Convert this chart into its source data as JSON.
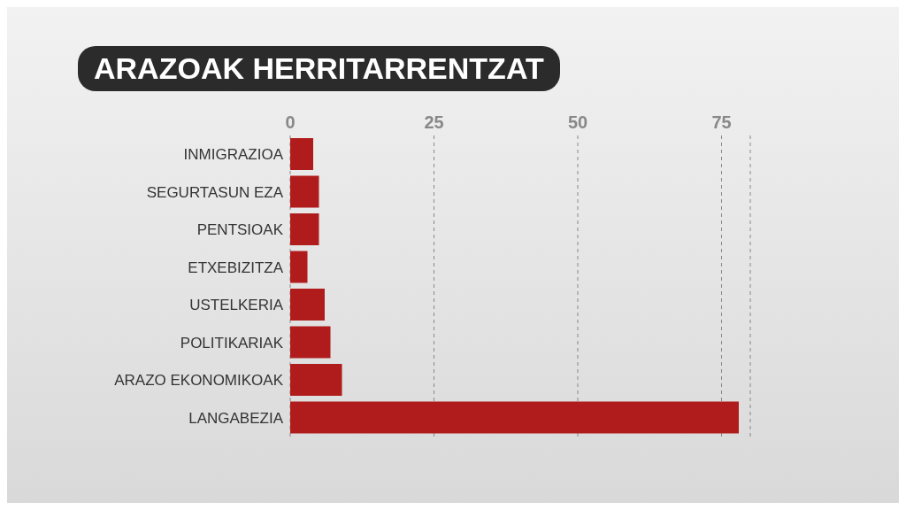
{
  "chart_data": {
    "type": "bar",
    "title": "ARAZOAK HERRITARRENTZAT",
    "orientation": "horizontal",
    "categories": [
      "INMIGRAZIOA",
      "SEGURTASUN EZA",
      "PENTSIOAK",
      "ETXEBIZITZA",
      "USTELKERIA",
      "POLITIKARIAK",
      "ARAZO EKONOMIKOAK",
      "LANGABEZIA"
    ],
    "values": [
      4,
      5,
      5,
      3,
      6,
      7,
      9,
      78
    ],
    "color": "#b01c1c",
    "xlim": [
      0,
      80
    ],
    "xticks": [
      0,
      25,
      50,
      75
    ],
    "grid": "x"
  }
}
